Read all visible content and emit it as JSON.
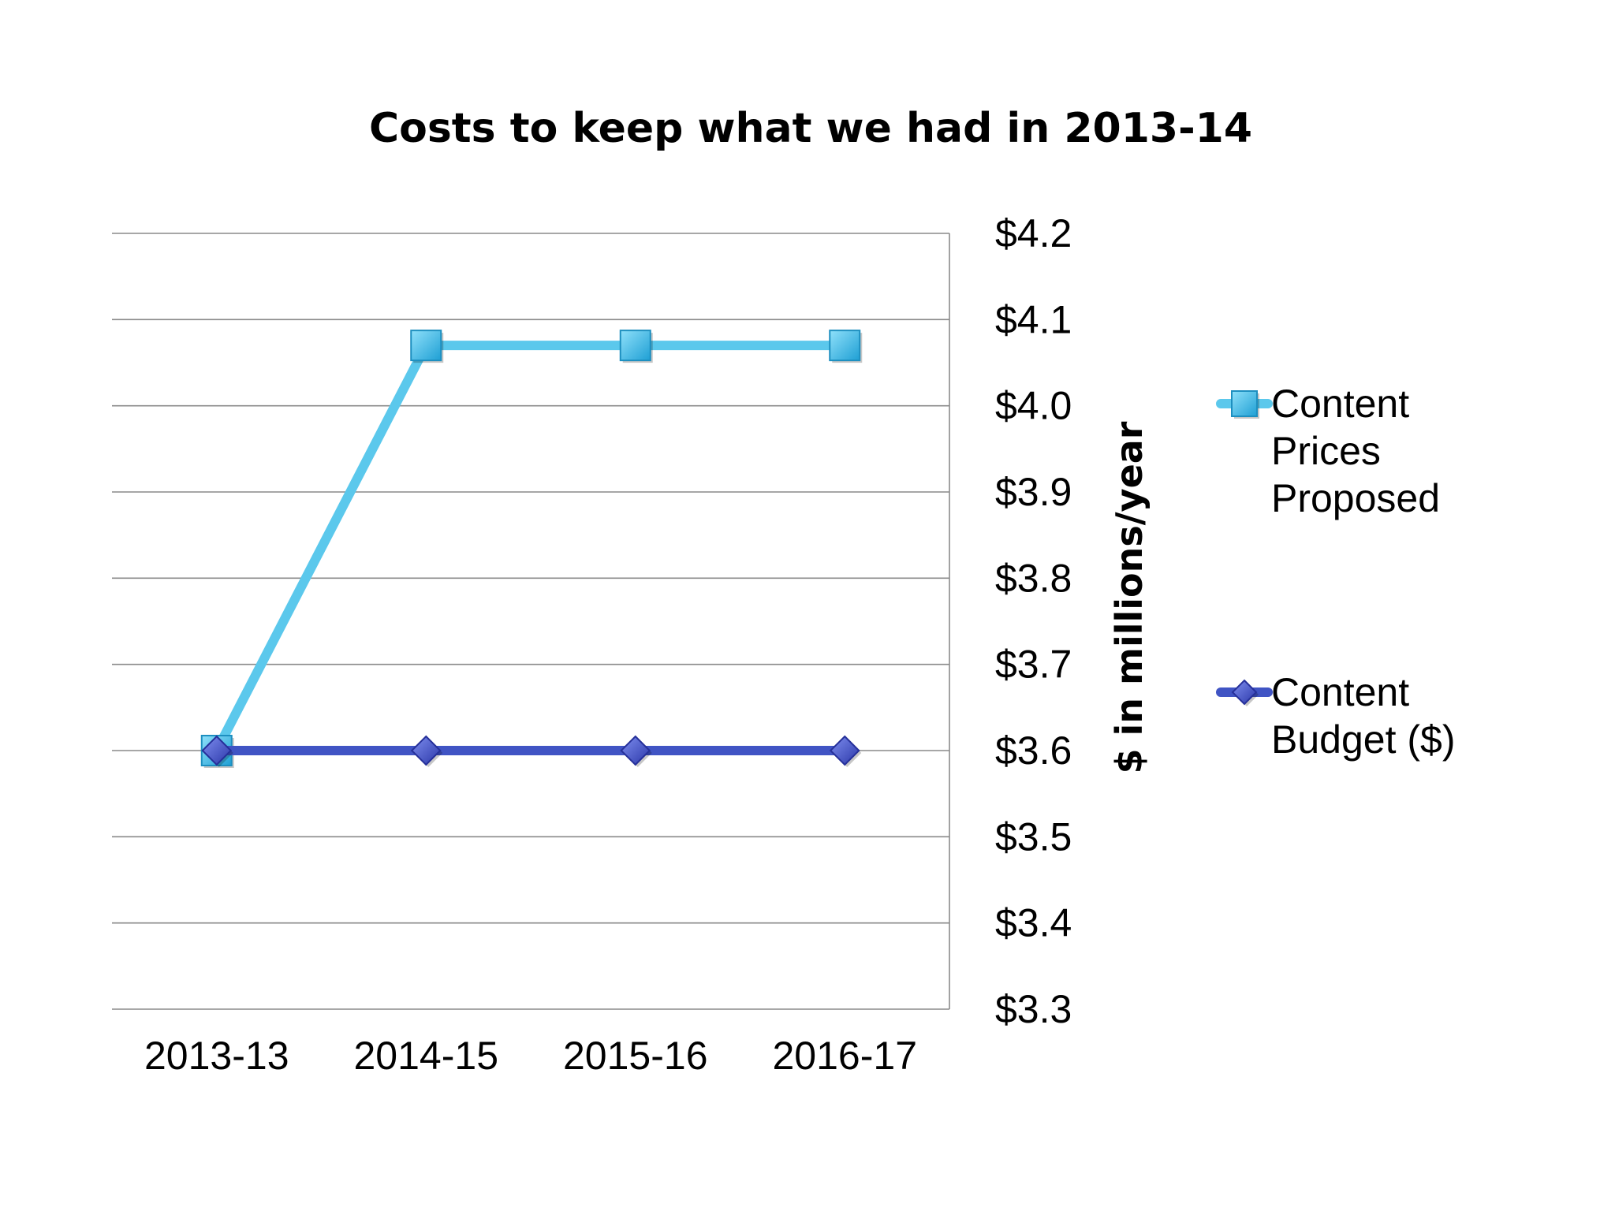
{
  "chart_data": {
    "type": "line",
    "title": "Costs to keep what we had in 2013-14",
    "categories": [
      "2013-13",
      "2014-15",
      "2015-16",
      "2016-17"
    ],
    "ylabel": "$ in millions/year",
    "ylim": [
      3.3,
      4.2
    ],
    "yticks": [
      "$4.2",
      "$4.1",
      "$4.0",
      "$3.9",
      "$3.8",
      "$3.7",
      "$3.6",
      "$3.5",
      "$3.4",
      "$3.3"
    ],
    "y_axis_side": "right",
    "grid": true,
    "legend_position": "right",
    "series": [
      {
        "name": "Content Prices Proposed",
        "legend_lines": [
          "Content",
          "Prices",
          "Proposed"
        ],
        "values": [
          3.6,
          4.07,
          4.07,
          4.07
        ],
        "color": "#5bc8ec",
        "marker": "square",
        "marker_color": "#2fb3e4"
      },
      {
        "name": "Content Budget ($)",
        "legend_lines": [
          "Content",
          "Budget ($)"
        ],
        "values": [
          3.6,
          3.6,
          3.6,
          3.6
        ],
        "color": "#4054c4",
        "marker": "diamond",
        "marker_color": "#3848c0"
      }
    ]
  }
}
